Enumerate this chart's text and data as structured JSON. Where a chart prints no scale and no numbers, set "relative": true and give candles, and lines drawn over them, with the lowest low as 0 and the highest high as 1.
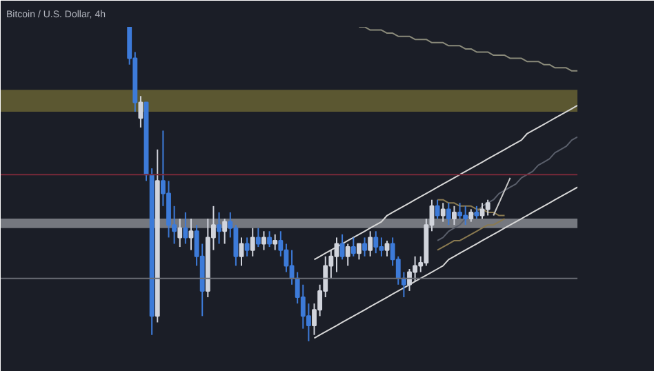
{
  "chart_data": {
    "type": "candlestick",
    "title": "Bitcoin / U.S. Dollar, 4h",
    "relative": true,
    "categories": [
      null,
      null,
      null,
      null,
      null,
      null,
      null,
      null,
      null,
      null,
      null,
      null,
      null,
      null,
      null,
      null,
      null,
      null,
      null,
      null,
      null,
      null,
      null,
      null,
      null,
      null,
      null,
      null,
      null,
      null,
      null,
      null,
      null,
      null,
      null,
      null,
      null,
      null,
      null,
      null,
      null,
      null,
      null,
      null,
      null,
      null,
      null,
      null,
      null,
      null,
      null,
      null,
      null,
      null,
      null,
      null,
      null,
      null,
      null,
      null,
      null,
      null,
      null,
      null,
      null,
      null,
      null,
      null,
      null,
      null,
      null,
      null,
      null,
      null,
      null,
      null,
      null,
      null,
      null,
      null,
      null
    ],
    "ohlc": [
      [
        1.0,
        1.0,
        0.88,
        0.9
      ],
      [
        0.9,
        0.92,
        0.73,
        0.76
      ],
      [
        0.71,
        0.78,
        0.68,
        0.76
      ],
      [
        0.76,
        0.76,
        0.51,
        0.53
      ],
      [
        0.53,
        0.55,
        0.02,
        0.08
      ],
      [
        0.08,
        0.61,
        0.06,
        0.51
      ],
      [
        0.51,
        0.67,
        0.43,
        0.47
      ],
      [
        0.47,
        0.51,
        0.33,
        0.37
      ],
      [
        0.37,
        0.43,
        0.31,
        0.35
      ],
      [
        0.33,
        0.39,
        0.3,
        0.36
      ],
      [
        0.36,
        0.41,
        0.31,
        0.33
      ],
      [
        0.33,
        0.39,
        0.29,
        0.35
      ],
      [
        0.35,
        0.37,
        0.24,
        0.27
      ],
      [
        0.27,
        0.31,
        0.08,
        0.16
      ],
      [
        0.16,
        0.39,
        0.14,
        0.33
      ],
      [
        0.33,
        0.43,
        0.29,
        0.37
      ],
      [
        0.37,
        0.41,
        0.31,
        0.35
      ],
      [
        0.35,
        0.39,
        0.31,
        0.38
      ],
      [
        0.38,
        0.41,
        0.33,
        0.36
      ],
      [
        0.36,
        0.37,
        0.24,
        0.27
      ],
      [
        0.27,
        0.33,
        0.24,
        0.31
      ],
      [
        0.31,
        0.33,
        0.27,
        0.29
      ],
      [
        0.29,
        0.36,
        0.27,
        0.33
      ],
      [
        0.33,
        0.36,
        0.3,
        0.31
      ],
      [
        0.31,
        0.35,
        0.29,
        0.33
      ],
      [
        0.33,
        0.35,
        0.3,
        0.31
      ],
      [
        0.31,
        0.34,
        0.29,
        0.32
      ],
      [
        0.32,
        0.35,
        0.27,
        0.29
      ],
      [
        0.29,
        0.31,
        0.22,
        0.24
      ],
      [
        0.24,
        0.29,
        0.18,
        0.2
      ],
      [
        0.2,
        0.22,
        0.12,
        0.14
      ],
      [
        0.14,
        0.18,
        0.04,
        0.08
      ],
      [
        0.08,
        0.12,
        0.0,
        0.05
      ],
      [
        0.05,
        0.12,
        0.02,
        0.1
      ],
      [
        0.1,
        0.18,
        0.08,
        0.16
      ],
      [
        0.16,
        0.27,
        0.14,
        0.24
      ],
      [
        0.24,
        0.29,
        0.2,
        0.27
      ],
      [
        0.27,
        0.33,
        0.22,
        0.31
      ],
      [
        0.31,
        0.34,
        0.26,
        0.27
      ],
      [
        0.27,
        0.31,
        0.24,
        0.3
      ],
      [
        0.3,
        0.33,
        0.27,
        0.28
      ],
      [
        0.28,
        0.31,
        0.26,
        0.31
      ],
      [
        0.31,
        0.33,
        0.27,
        0.29
      ],
      [
        0.29,
        0.35,
        0.27,
        0.33
      ],
      [
        0.33,
        0.35,
        0.28,
        0.3
      ],
      [
        0.3,
        0.33,
        0.27,
        0.29
      ],
      [
        0.29,
        0.32,
        0.27,
        0.31
      ],
      [
        0.31,
        0.33,
        0.24,
        0.26
      ],
      [
        0.26,
        0.27,
        0.18,
        0.2
      ],
      [
        0.2,
        0.22,
        0.14,
        0.18
      ],
      [
        0.18,
        0.23,
        0.16,
        0.22
      ],
      [
        0.22,
        0.27,
        0.19,
        0.24
      ],
      [
        0.24,
        0.27,
        0.22,
        0.25
      ],
      [
        0.25,
        0.39,
        0.24,
        0.37
      ],
      [
        0.37,
        0.45,
        0.35,
        0.43
      ],
      [
        0.43,
        0.45,
        0.39,
        0.4
      ],
      [
        0.4,
        0.44,
        0.38,
        0.42
      ],
      [
        0.42,
        0.44,
        0.37,
        0.39
      ],
      [
        0.39,
        0.43,
        0.37,
        0.41
      ],
      [
        0.41,
        0.44,
        0.39,
        0.4
      ],
      [
        0.4,
        0.43,
        0.37,
        0.39
      ],
      [
        0.39,
        0.42,
        0.38,
        0.41
      ],
      [
        0.41,
        0.43,
        0.39,
        0.4
      ],
      [
        0.4,
        0.44,
        0.39,
        0.42
      ],
      [
        0.42,
        0.45,
        0.4,
        0.44
      ],
      null,
      null,
      null,
      null,
      null,
      null,
      null,
      null,
      null,
      null,
      null,
      null,
      null,
      null,
      null,
      null
    ],
    "colors": [
      "#3d7bd9",
      "#3d7bd9",
      "#d1d4dc",
      "#3d7bd9",
      "#3d7bd9",
      "#d1d4dc",
      "#3d7bd9",
      "#3d7bd9",
      "#3d7bd9",
      "#d1d4dc",
      "#3d7bd9",
      "#d1d4dc",
      "#3d7bd9",
      "#3d7bd9",
      "#d1d4dc",
      "#d1d4dc",
      "#3d7bd9",
      "#d1d4dc",
      "#3d7bd9",
      "#3d7bd9",
      "#d1d4dc",
      "#3d7bd9",
      "#d1d4dc",
      "#3d7bd9",
      "#d1d4dc",
      "#3d7bd9",
      "#d1d4dc",
      "#3d7bd9",
      "#3d7bd9",
      "#3d7bd9",
      "#3d7bd9",
      "#3d7bd9",
      "#3d7bd9",
      "#d1d4dc",
      "#d1d4dc",
      "#d1d4dc",
      "#d1d4dc",
      "#d1d4dc",
      "#3d7bd9",
      "#d1d4dc",
      "#3d7bd9",
      "#d1d4dc",
      "#3d7bd9",
      "#d1d4dc",
      "#3d7bd9",
      "#3d7bd9",
      "#d1d4dc",
      "#3d7bd9",
      "#3d7bd9",
      "#3d7bd9",
      "#d1d4dc",
      "#d1d4dc",
      "#d1d4dc",
      "#d1d4dc",
      "#d1d4dc",
      "#3d7bd9",
      "#d1d4dc",
      "#3d7bd9",
      "#d1d4dc",
      "#3d7bd9",
      "#3d7bd9",
      "#d1d4dc",
      "#3d7bd9",
      "#d1d4dc",
      "#d1d4dc",
      null,
      null,
      null,
      null,
      null,
      null,
      null,
      null,
      null,
      null,
      null,
      null,
      null,
      null,
      null,
      null
    ],
    "series": [
      {
        "type": "line",
        "color": "#d8d8d8",
        "values": [
          null,
          null,
          null,
          null,
          null,
          null,
          null,
          null,
          null,
          null,
          null,
          null,
          null,
          null,
          null,
          null,
          null,
          null,
          null,
          null,
          null,
          null,
          null,
          null,
          null,
          null,
          null,
          null,
          null,
          null,
          null,
          null,
          null,
          0.26,
          0.27,
          0.28,
          0.29,
          0.3,
          0.31,
          0.32,
          0.33,
          0.34,
          0.35,
          0.36,
          0.37,
          0.38,
          0.4,
          0.41,
          0.42,
          0.43,
          0.44,
          0.45,
          0.46,
          0.47,
          0.48,
          0.49,
          0.5,
          0.51,
          0.52,
          0.53,
          0.54,
          0.55,
          0.56,
          0.57,
          0.58,
          0.59,
          0.6,
          0.61,
          0.62,
          0.63,
          0.64,
          0.66,
          0.67,
          0.68,
          0.69,
          0.7,
          0.71,
          0.72,
          0.73,
          0.74,
          0.75
        ]
      },
      {
        "type": "line",
        "color": "#d8d8d8",
        "values": [
          null,
          null,
          null,
          null,
          null,
          null,
          null,
          null,
          null,
          null,
          null,
          null,
          null,
          null,
          null,
          null,
          null,
          null,
          null,
          null,
          null,
          null,
          null,
          null,
          null,
          null,
          null,
          null,
          null,
          null,
          null,
          null,
          null,
          0.01,
          0.02,
          0.03,
          0.04,
          0.05,
          0.06,
          0.07,
          0.08,
          0.09,
          0.1,
          0.11,
          0.12,
          0.13,
          0.14,
          0.15,
          0.16,
          0.17,
          0.18,
          0.19,
          0.2,
          0.21,
          0.22,
          0.23,
          0.24,
          0.26,
          0.27,
          0.28,
          0.29,
          0.3,
          0.31,
          0.32,
          0.33,
          0.34,
          0.35,
          0.36,
          0.37,
          0.38,
          0.39,
          0.4,
          0.41,
          0.42,
          0.43,
          0.44,
          0.45,
          0.46,
          0.47,
          0.48,
          0.49
        ]
      },
      {
        "type": "line",
        "color": "#5a5f6b",
        "values": [
          null,
          null,
          null,
          null,
          null,
          null,
          null,
          null,
          null,
          null,
          null,
          null,
          null,
          null,
          null,
          null,
          null,
          null,
          null,
          null,
          null,
          null,
          null,
          null,
          null,
          null,
          null,
          null,
          null,
          null,
          null,
          null,
          null,
          null,
          null,
          null,
          null,
          null,
          null,
          null,
          null,
          null,
          null,
          null,
          null,
          null,
          null,
          null,
          null,
          null,
          null,
          null,
          null,
          null,
          null,
          0.32,
          0.33,
          0.35,
          0.36,
          0.37,
          0.39,
          0.4,
          0.41,
          0.43,
          0.44,
          0.45,
          0.47,
          0.48,
          0.49,
          0.5,
          0.52,
          0.53,
          0.54,
          0.56,
          0.57,
          0.58,
          0.6,
          0.61,
          0.62,
          0.64,
          0.65
        ]
      },
      {
        "type": "line",
        "color": "#8a8a7a",
        "values": [
          null,
          null,
          null,
          null,
          null,
          null,
          null,
          null,
          null,
          null,
          null,
          null,
          null,
          null,
          null,
          null,
          null,
          null,
          null,
          null,
          null,
          null,
          null,
          null,
          null,
          null,
          null,
          null,
          null,
          null,
          null,
          null,
          null,
          null,
          null,
          null,
          null,
          null,
          null,
          null,
          null,
          1.0,
          1.0,
          0.99,
          0.99,
          0.99,
          0.98,
          0.98,
          0.97,
          0.97,
          0.97,
          0.96,
          0.96,
          0.96,
          0.95,
          0.95,
          0.95,
          0.94,
          0.94,
          0.94,
          0.93,
          0.93,
          0.92,
          0.92,
          0.92,
          0.91,
          0.91,
          0.91,
          0.9,
          0.9,
          0.9,
          0.89,
          0.89,
          0.89,
          0.88,
          0.88,
          0.87,
          0.87,
          0.87,
          0.86,
          0.86
        ]
      },
      {
        "type": "line",
        "color": "#8a7a50",
        "values": [
          null,
          null,
          null,
          null,
          null,
          null,
          null,
          null,
          null,
          null,
          null,
          null,
          null,
          null,
          null,
          null,
          null,
          null,
          null,
          null,
          null,
          null,
          null,
          null,
          null,
          null,
          null,
          null,
          null,
          null,
          null,
          null,
          null,
          null,
          null,
          null,
          null,
          null,
          null,
          null,
          null,
          null,
          null,
          null,
          null,
          null,
          null,
          null,
          null,
          null,
          null,
          null,
          null,
          null,
          null,
          0.45,
          0.45,
          0.44,
          0.44,
          0.43,
          0.43,
          0.43,
          0.42,
          0.42,
          0.41,
          0.41,
          0.4,
          0.4,
          null,
          null,
          null,
          null,
          null,
          null,
          null,
          null,
          null,
          null,
          null,
          null,
          null
        ]
      },
      {
        "type": "line",
        "color": "#8a7a50",
        "values": [
          null,
          null,
          null,
          null,
          null,
          null,
          null,
          null,
          null,
          null,
          null,
          null,
          null,
          null,
          null,
          null,
          null,
          null,
          null,
          null,
          null,
          null,
          null,
          null,
          null,
          null,
          null,
          null,
          null,
          null,
          null,
          null,
          null,
          null,
          null,
          null,
          null,
          null,
          null,
          null,
          null,
          null,
          null,
          null,
          null,
          null,
          null,
          null,
          null,
          null,
          null,
          null,
          null,
          null,
          null,
          0.29,
          0.3,
          0.31,
          0.32,
          0.32,
          0.33,
          0.34,
          0.35,
          0.36,
          0.37,
          0.37,
          0.38,
          0.39,
          null,
          null,
          null,
          null,
          null,
          null,
          null,
          null,
          null,
          null,
          null,
          null,
          null
        ]
      },
      {
        "type": "line",
        "color": "#c8c8c8",
        "values": [
          null,
          null,
          null,
          null,
          null,
          null,
          null,
          null,
          null,
          null,
          null,
          null,
          null,
          null,
          null,
          null,
          null,
          null,
          null,
          null,
          null,
          null,
          null,
          null,
          null,
          null,
          null,
          null,
          null,
          null,
          null,
          null,
          null,
          null,
          null,
          null,
          null,
          null,
          null,
          null,
          null,
          null,
          null,
          null,
          null,
          null,
          null,
          null,
          null,
          null,
          null,
          null,
          null,
          null,
          null,
          null,
          null,
          null,
          null,
          null,
          null,
          null,
          null,
          null,
          null,
          0.4,
          0.44,
          0.48,
          0.52,
          null,
          null,
          null,
          null,
          null,
          null,
          null,
          null,
          null,
          null,
          null,
          null
        ]
      }
    ],
    "bands": [
      {
        "axis": "y",
        "from": 0.73,
        "to": 0.8,
        "color": "#6b6534"
      },
      {
        "axis": "y",
        "from": 0.36,
        "to": 0.39,
        "color": "#8c8f96"
      }
    ],
    "ref_lines": [
      {
        "axis": "y",
        "value": 0.53,
        "color": "#7a2a3a"
      },
      {
        "axis": "y",
        "value": 0.2,
        "color": "#6a6d75"
      }
    ],
    "grid": false
  }
}
